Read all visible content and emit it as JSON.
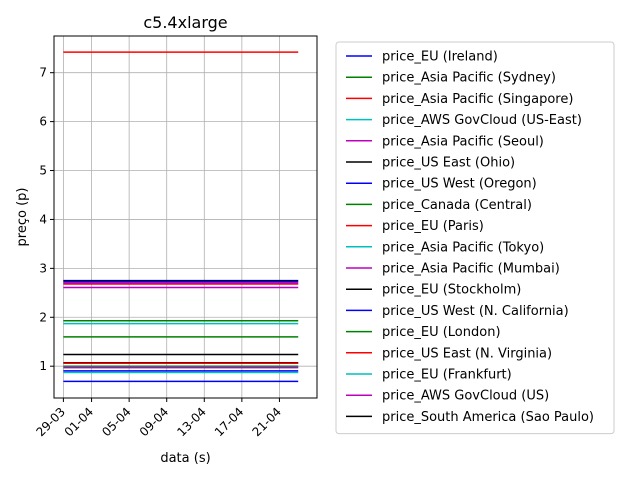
{
  "chart_data": {
    "type": "line",
    "title": "c5.4xlarge",
    "xlabel": "data (s)",
    "ylabel": "preço (p)",
    "xlim": [
      "2018-03-28",
      "2018-04-25"
    ],
    "ylim": [
      0.35,
      7.75
    ],
    "x_ticks": [
      {
        "date": "2018-03-29",
        "label": "29-03"
      },
      {
        "date": "2018-04-01",
        "label": "01-04"
      },
      {
        "date": "2018-04-05",
        "label": "05-04"
      },
      {
        "date": "2018-04-09",
        "label": "09-04"
      },
      {
        "date": "2018-04-13",
        "label": "13-04"
      },
      {
        "date": "2018-04-17",
        "label": "17-04"
      },
      {
        "date": "2018-04-21",
        "label": "21-04"
      }
    ],
    "y_ticks": [
      1,
      2,
      3,
      4,
      5,
      6,
      7
    ],
    "grid": true,
    "legend_position": "outside-right",
    "x_start": "2018-03-29",
    "x_end": "2018-04-23",
    "series": [
      {
        "name": "price_EU (Ireland)",
        "color": "#0000ff",
        "value": 0.905
      },
      {
        "name": "price_Asia Pacific (Sydney)",
        "color": "#008000",
        "value": 1.0
      },
      {
        "name": "price_Asia Pacific (Singapore)",
        "color": "#ff0000",
        "value": 7.42
      },
      {
        "name": "price_AWS GovCloud (US-East)",
        "color": "#00bfbf",
        "value": 0.975
      },
      {
        "name": "price_Asia Pacific (Seoul)",
        "color": "#bf00bf",
        "value": 0.97
      },
      {
        "name": "price_US East (Ohio)",
        "color": "#000000",
        "value": 2.75
      },
      {
        "name": "price_US West (Oregon)",
        "color": "#0000ff",
        "value": 2.73
      },
      {
        "name": "price_Canada (Central)",
        "color": "#008000",
        "value": 1.6
      },
      {
        "name": "price_EU (Paris)",
        "color": "#ff0000",
        "value": 2.68
      },
      {
        "name": "price_Asia Pacific (Tokyo)",
        "color": "#00bfbf",
        "value": 1.87
      },
      {
        "name": "price_Asia Pacific (Mumbai)",
        "color": "#bf00bf",
        "value": 2.61
      },
      {
        "name": "price_EU (Stockholm)",
        "color": "#000000",
        "value": 1.07
      },
      {
        "name": "price_US West (N. California)",
        "color": "#0000ff",
        "value": 0.69
      },
      {
        "name": "price_EU (London)",
        "color": "#008000",
        "value": 1.93
      },
      {
        "name": "price_US East (N. Virginia)",
        "color": "#ff0000",
        "value": 1.06
      },
      {
        "name": "price_EU (Frankfurt)",
        "color": "#00bfbf",
        "value": 0.87
      },
      {
        "name": "price_AWS GovCloud (US)",
        "color": "#bf00bf",
        "value": 2.7
      },
      {
        "name": "price_South America (Sao Paulo)",
        "color": "#000000",
        "value": 1.24
      }
    ]
  }
}
